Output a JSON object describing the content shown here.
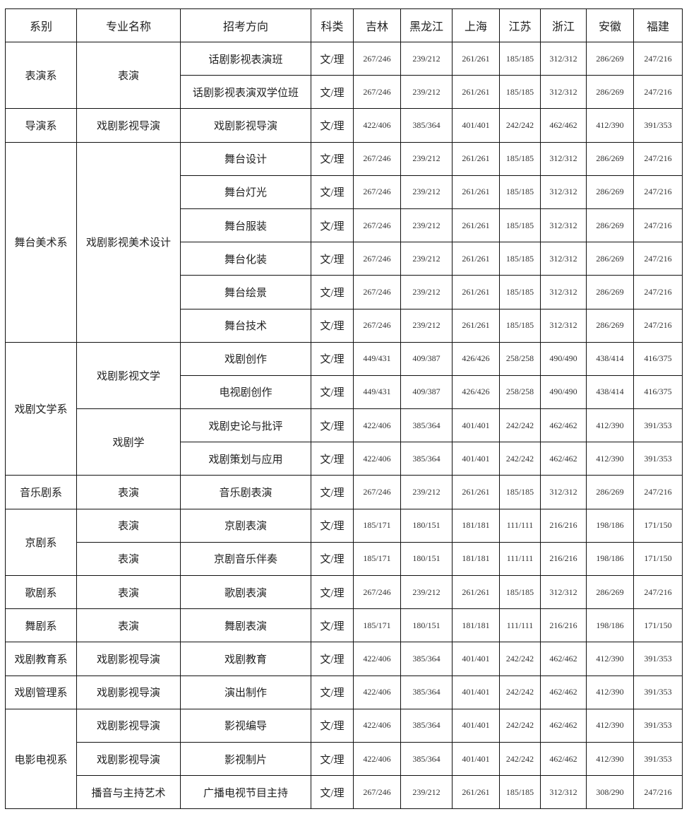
{
  "table": {
    "header": [
      "系别",
      "专业名称",
      "招考方向",
      "科类",
      "吉林",
      "黑龙江",
      "上海",
      "江苏",
      "浙江",
      "安徽",
      "福建"
    ],
    "departments": [
      {
        "name": "表演系",
        "majors": [
          {
            "name": "表演",
            "directions": [
              {
                "name": "话剧影视表演班",
                "category": "文/理",
                "scores": [
                  "267/246",
                  "239/212",
                  "261/261",
                  "185/185",
                  "312/312",
                  "286/269",
                  "247/216"
                ]
              },
              {
                "name": "话剧影视表演双学位班",
                "category": "文/理",
                "scores": [
                  "267/246",
                  "239/212",
                  "261/261",
                  "185/185",
                  "312/312",
                  "286/269",
                  "247/216"
                ]
              }
            ]
          }
        ]
      },
      {
        "name": "导演系",
        "majors": [
          {
            "name": "戏剧影视导演",
            "directions": [
              {
                "name": "戏剧影视导演",
                "category": "文/理",
                "scores": [
                  "422/406",
                  "385/364",
                  "401/401",
                  "242/242",
                  "462/462",
                  "412/390",
                  "391/353"
                ]
              }
            ]
          }
        ]
      },
      {
        "name": "舞台美术系",
        "majors": [
          {
            "name": "戏剧影视美术设计",
            "directions": [
              {
                "name": "舞台设计",
                "category": "文/理",
                "scores": [
                  "267/246",
                  "239/212",
                  "261/261",
                  "185/185",
                  "312/312",
                  "286/269",
                  "247/216"
                ]
              },
              {
                "name": "舞台灯光",
                "category": "文/理",
                "scores": [
                  "267/246",
                  "239/212",
                  "261/261",
                  "185/185",
                  "312/312",
                  "286/269",
                  "247/216"
                ]
              },
              {
                "name": "舞台服装",
                "category": "文/理",
                "scores": [
                  "267/246",
                  "239/212",
                  "261/261",
                  "185/185",
                  "312/312",
                  "286/269",
                  "247/216"
                ]
              },
              {
                "name": "舞台化装",
                "category": "文/理",
                "scores": [
                  "267/246",
                  "239/212",
                  "261/261",
                  "185/185",
                  "312/312",
                  "286/269",
                  "247/216"
                ]
              },
              {
                "name": "舞台绘景",
                "category": "文/理",
                "scores": [
                  "267/246",
                  "239/212",
                  "261/261",
                  "185/185",
                  "312/312",
                  "286/269",
                  "247/216"
                ]
              },
              {
                "name": "舞台技术",
                "category": "文/理",
                "scores": [
                  "267/246",
                  "239/212",
                  "261/261",
                  "185/185",
                  "312/312",
                  "286/269",
                  "247/216"
                ]
              }
            ]
          }
        ]
      },
      {
        "name": "戏剧文学系",
        "majors": [
          {
            "name": "戏剧影视文学",
            "directions": [
              {
                "name": "戏剧创作",
                "category": "文/理",
                "scores": [
                  "449/431",
                  "409/387",
                  "426/426",
                  "258/258",
                  "490/490",
                  "438/414",
                  "416/375"
                ]
              },
              {
                "name": "电视剧创作",
                "category": "文/理",
                "scores": [
                  "449/431",
                  "409/387",
                  "426/426",
                  "258/258",
                  "490/490",
                  "438/414",
                  "416/375"
                ]
              }
            ]
          },
          {
            "name": "戏剧学",
            "directions": [
              {
                "name": "戏剧史论与批评",
                "category": "文/理",
                "scores": [
                  "422/406",
                  "385/364",
                  "401/401",
                  "242/242",
                  "462/462",
                  "412/390",
                  "391/353"
                ]
              },
              {
                "name": "戏剧策划与应用",
                "category": "文/理",
                "scores": [
                  "422/406",
                  "385/364",
                  "401/401",
                  "242/242",
                  "462/462",
                  "412/390",
                  "391/353"
                ]
              }
            ]
          }
        ]
      },
      {
        "name": "音乐剧系",
        "majors": [
          {
            "name": "表演",
            "directions": [
              {
                "name": "音乐剧表演",
                "category": "文/理",
                "scores": [
                  "267/246",
                  "239/212",
                  "261/261",
                  "185/185",
                  "312/312",
                  "286/269",
                  "247/216"
                ]
              }
            ]
          }
        ]
      },
      {
        "name": "京剧系",
        "majors": [
          {
            "name": "表演",
            "directions": [
              {
                "name": "京剧表演",
                "category": "文/理",
                "scores": [
                  "185/171",
                  "180/151",
                  "181/181",
                  "111/111",
                  "216/216",
                  "198/186",
                  "171/150"
                ]
              }
            ]
          },
          {
            "name": "表演",
            "directions": [
              {
                "name": "京剧音乐伴奏",
                "category": "文/理",
                "scores": [
                  "185/171",
                  "180/151",
                  "181/181",
                  "111/111",
                  "216/216",
                  "198/186",
                  "171/150"
                ]
              }
            ]
          }
        ]
      },
      {
        "name": "歌剧系",
        "majors": [
          {
            "name": "表演",
            "directions": [
              {
                "name": "歌剧表演",
                "category": "文/理",
                "scores": [
                  "267/246",
                  "239/212",
                  "261/261",
                  "185/185",
                  "312/312",
                  "286/269",
                  "247/216"
                ]
              }
            ]
          }
        ]
      },
      {
        "name": "舞剧系",
        "majors": [
          {
            "name": "表演",
            "directions": [
              {
                "name": "舞剧表演",
                "category": "文/理",
                "scores": [
                  "185/171",
                  "180/151",
                  "181/181",
                  "111/111",
                  "216/216",
                  "198/186",
                  "171/150"
                ]
              }
            ]
          }
        ]
      },
      {
        "name": "戏剧教育系",
        "majors": [
          {
            "name": "戏剧影视导演",
            "directions": [
              {
                "name": "戏剧教育",
                "category": "文/理",
                "scores": [
                  "422/406",
                  "385/364",
                  "401/401",
                  "242/242",
                  "462/462",
                  "412/390",
                  "391/353"
                ]
              }
            ]
          }
        ]
      },
      {
        "name": "戏剧管理系",
        "majors": [
          {
            "name": "戏剧影视导演",
            "directions": [
              {
                "name": "演出制作",
                "category": "文/理",
                "scores": [
                  "422/406",
                  "385/364",
                  "401/401",
                  "242/242",
                  "462/462",
                  "412/390",
                  "391/353"
                ]
              }
            ]
          }
        ]
      },
      {
        "name": "电影电视系",
        "majors": [
          {
            "name": "戏剧影视导演",
            "directions": [
              {
                "name": "影视编导",
                "category": "文/理",
                "scores": [
                  "422/406",
                  "385/364",
                  "401/401",
                  "242/242",
                  "462/462",
                  "412/390",
                  "391/353"
                ]
              }
            ]
          },
          {
            "name": "戏剧影视导演",
            "directions": [
              {
                "name": "影视制片",
                "category": "文/理",
                "scores": [
                  "422/406",
                  "385/364",
                  "401/401",
                  "242/242",
                  "462/462",
                  "412/390",
                  "391/353"
                ]
              }
            ]
          },
          {
            "name": "播音与主持艺术",
            "directions": [
              {
                "name": "广播电视节目主持",
                "category": "文/理",
                "scores": [
                  "267/246",
                  "239/212",
                  "261/261",
                  "185/185",
                  "312/312",
                  "308/290",
                  "247/216"
                ]
              }
            ]
          }
        ]
      }
    ]
  }
}
